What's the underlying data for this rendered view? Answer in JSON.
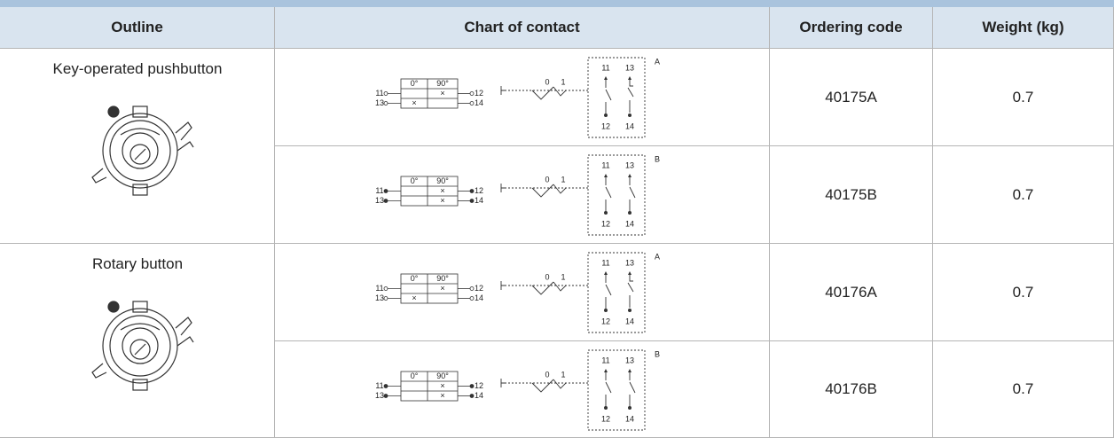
{
  "header": [
    "Outline",
    "Chart of contact",
    "Ordering code",
    "Weight (kg)"
  ],
  "groups": [
    {
      "outline": "Key-operated pushbutton",
      "rows": [
        {
          "diagram": {
            "positions": [
              "0°",
              "90°"
            ],
            "steps": [
              "0",
              "1"
            ],
            "variant": "A",
            "contacts": [
              {
                "in": "11",
                "out": "12",
                "cells": [
                  null,
                  "×"
                ]
              },
              {
                "in": "13",
                "out": "14",
                "cells": [
                  "×",
                  null
                ]
              }
            ]
          },
          "code": "40175A",
          "weight": 0.7
        },
        {
          "diagram": {
            "positions": [
              "0°",
              "90°"
            ],
            "steps": [
              "0",
              "1"
            ],
            "variant": "B",
            "contacts": [
              {
                "in": "11",
                "out": "12",
                "cells": [
                  null,
                  "×"
                ]
              },
              {
                "in": "13",
                "out": "14",
                "cells": [
                  null,
                  "×"
                ]
              }
            ]
          },
          "code": "40175B",
          "weight": 0.7
        }
      ]
    },
    {
      "outline": "Rotary button",
      "rows": [
        {
          "diagram": {
            "positions": [
              "0°",
              "90°"
            ],
            "steps": [
              "0",
              "1"
            ],
            "variant": "A",
            "contacts": [
              {
                "in": "11",
                "out": "12",
                "cells": [
                  null,
                  "×"
                ]
              },
              {
                "in": "13",
                "out": "14",
                "cells": [
                  "×",
                  null
                ]
              }
            ]
          },
          "code": "40176A",
          "weight": 0.7
        },
        {
          "diagram": {
            "positions": [
              "0°",
              "90°"
            ],
            "steps": [
              "0",
              "1"
            ],
            "variant": "B",
            "contacts": [
              {
                "in": "11",
                "out": "12",
                "cells": [
                  null,
                  "×"
                ]
              },
              {
                "in": "13",
                "out": "14",
                "cells": [
                  null,
                  "×"
                ]
              }
            ]
          },
          "code": "40176B",
          "weight": 0.7
        }
      ]
    }
  ]
}
